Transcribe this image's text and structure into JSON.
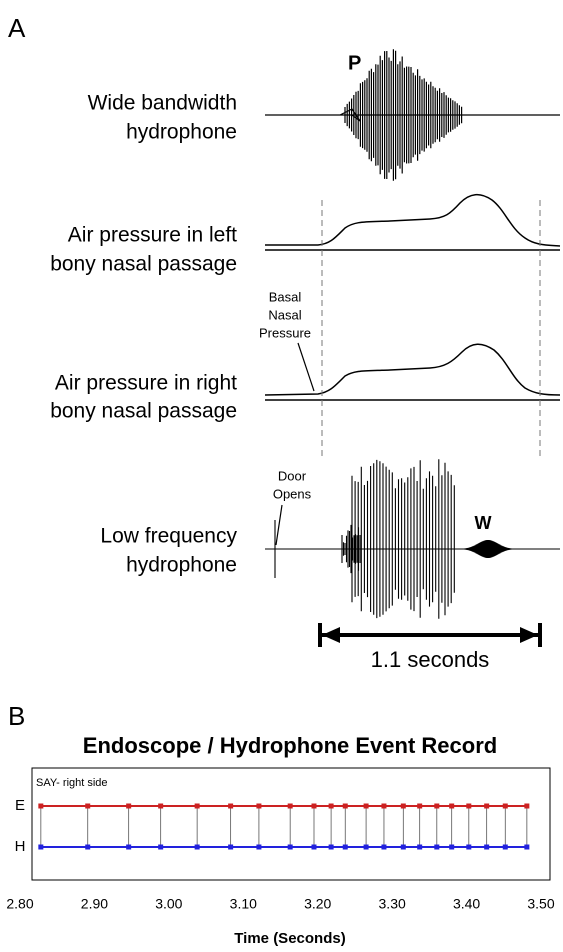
{
  "panel_a": {
    "label": "A",
    "peak_p": "P",
    "peak_w": "W",
    "trace_labels": [
      [
        "Wide bandwidth",
        "hydrophone"
      ],
      [
        "Air pressure in left",
        "bony nasal passage"
      ],
      [
        "Air pressure in right",
        "bony nasal passage"
      ],
      [
        "Low frequency",
        "hydrophone"
      ]
    ],
    "basal_note": [
      "Basal",
      "Nasal",
      "Pressure"
    ],
    "door_note": [
      "Door",
      "Opens"
    ],
    "duration": "1.1 seconds"
  },
  "chart_data": {
    "type": "event",
    "panel_label": "B",
    "title": "Endoscope / Hydrophone Event Record",
    "annotation": "SAY- right side",
    "x_label": "Time (Seconds)",
    "x": [
      2.828,
      2.891,
      2.946,
      2.989,
      3.038,
      3.083,
      3.121,
      3.163,
      3.195,
      3.218,
      3.237,
      3.265,
      3.289,
      3.315,
      3.337,
      3.36,
      3.38,
      3.403,
      3.427,
      3.452,
      3.481
    ],
    "series": [
      {
        "name": "E",
        "color": "#cc2222"
      },
      {
        "name": "H",
        "color": "#2222dd"
      }
    ],
    "xlim": [
      2.8,
      3.5
    ],
    "xticks": [
      {
        "value": 2.8,
        "label": "2.80"
      },
      {
        "value": 2.9,
        "label": "2.90"
      },
      {
        "value": 3.0,
        "label": "3.00"
      },
      {
        "value": 3.1,
        "label": "3.10"
      },
      {
        "value": 3.2,
        "label": "3.20"
      },
      {
        "value": 3.3,
        "label": "3.30"
      },
      {
        "value": 3.4,
        "label": "3.40"
      },
      {
        "value": 3.5,
        "label": "3.50"
      }
    ]
  }
}
